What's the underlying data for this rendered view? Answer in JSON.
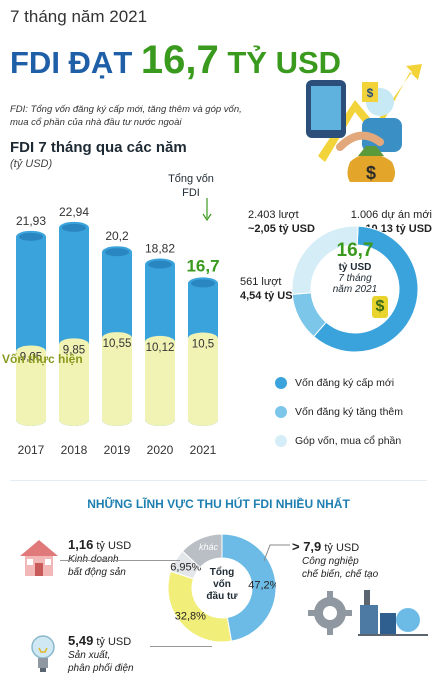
{
  "header": {
    "period": "7 tháng năm 2021",
    "title_prefix": "FDI ĐẠT ",
    "title_value": "16,7",
    "title_unit": " TỶ USD",
    "note": "FDI: Tổng vốn đăng ký cấp mới, tăng thêm và góp vốn, mua cổ phần của nhà đầu tư nước ngoài"
  },
  "bar_section": {
    "title": "FDI 7 tháng qua các năm",
    "unit": "(tỷ USD)",
    "total_label_line1": "Tổng vốn",
    "total_label_line2": "FDI",
    "realized_label": "Vốn thực hiện",
    "highlight_value": "16,7"
  },
  "donut_section": {
    "center_value": "16,7",
    "center_unit": "tỷ USD",
    "center_period_line1": "7 tháng",
    "center_period_line2": "năm 2021",
    "stat_new_line1": "1.006 dự án mới",
    "stat_new_line2": "10,13 tỷ USD",
    "stat_add_line1": "2.403 lượt",
    "stat_add_line2": "~2,05 tỷ USD",
    "stat_contrib_line1": "561 lượt",
    "stat_contrib_line2": "4,54 tỷ USD",
    "legend": [
      "Vốn đăng ký cấp mới",
      "Vốn đăng ký tăng thêm",
      "Góp vốn, mua cổ phần"
    ]
  },
  "sector_section": {
    "title": "NHỮNG LĨNH VỰC THU HÚT FDI NHIỀU NHẤT",
    "center_line1": "Tổng",
    "center_line2": "vốn",
    "center_line3": "đầu tư",
    "other_label": "khác",
    "real_estate": {
      "value": "1,16",
      "unit": "tỷ USD",
      "line1": "Kinh doanh",
      "line2": "bất động sản"
    },
    "manufacturing": {
      "value": "> 7,9",
      "unit": "tỷ USD",
      "line1": "Công nghiệp",
      "line2": "chế biến, chế tạo"
    },
    "power": {
      "value": "5,49",
      "unit": "tỷ USD",
      "line1": "Sản xuất,",
      "line2": "phân phối điện"
    }
  },
  "colors": {
    "bar_blue": "#3aa3dc",
    "bar_yellow": "#f1f3b5",
    "donut_new": "#3aa3dc",
    "donut_add": "#7cc6ea",
    "donut_contrib": "#d5edf7",
    "sector_manufacturing": "#6cbbe6",
    "sector_power": "#f1ee7a",
    "sector_real_estate": "#e4e7ea",
    "sector_other": "#b9bfc5",
    "title_blue": "#1e5fa8",
    "accent_green": "#3a9a1e"
  },
  "chart_data": [
    {
      "type": "bar",
      "categories": [
        "2017",
        "2018",
        "2019",
        "2020",
        "2021"
      ],
      "series": [
        {
          "name": "Tổng vốn FDI",
          "values": [
            21.93,
            22.94,
            20.2,
            18.82,
            16.7
          ],
          "labels": [
            "21,93",
            "22,94",
            "20,2",
            "18,82",
            "16,7"
          ]
        },
        {
          "name": "Vốn thực hiện",
          "values": [
            9.05,
            9.85,
            10.55,
            10.12,
            10.5
          ],
          "labels": [
            "9,05",
            "9,85",
            "10,55",
            "10,12",
            "10,5"
          ]
        }
      ],
      "title": "FDI 7 tháng qua các năm",
      "ylabel": "(tỷ USD)"
    },
    {
      "type": "pie",
      "labels": [
        "Vốn đăng ký cấp mới",
        "Vốn đăng ký tăng thêm",
        "Góp vốn, mua cổ phần"
      ],
      "values": [
        10.13,
        2.05,
        4.54
      ]
    },
    {
      "type": "pie",
      "labels": [
        "Công nghiệp chế biến, chế tạo",
        "Sản xuất, phân phối điện",
        "Kinh doanh bất động sản",
        "khác"
      ],
      "values": [
        47.2,
        32.8,
        6.95,
        13.05
      ],
      "value_labels": [
        "47,2%",
        "32,8%",
        "6,95%",
        ""
      ]
    }
  ]
}
